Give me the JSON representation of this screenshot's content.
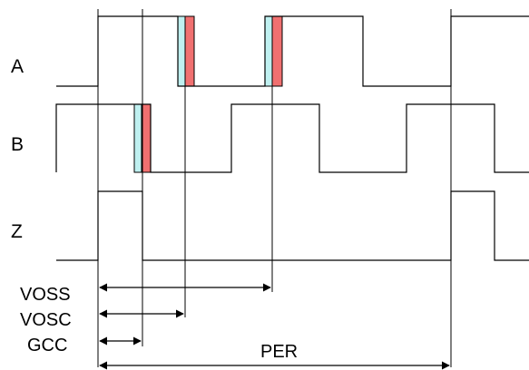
{
  "signals": [
    {
      "id": "A",
      "label": "A"
    },
    {
      "id": "B",
      "label": "B"
    },
    {
      "id": "Z",
      "label": "Z"
    }
  ],
  "measurements": [
    {
      "id": "voss",
      "label": "VOSS"
    },
    {
      "id": "vosc",
      "label": "VOSC"
    },
    {
      "id": "gcc",
      "label": "GCC"
    },
    {
      "id": "per",
      "label": "PER"
    }
  ],
  "colors": {
    "edge_band_cyan": "#bff0f0",
    "edge_band_red": "#f07070",
    "line": "#000000"
  }
}
